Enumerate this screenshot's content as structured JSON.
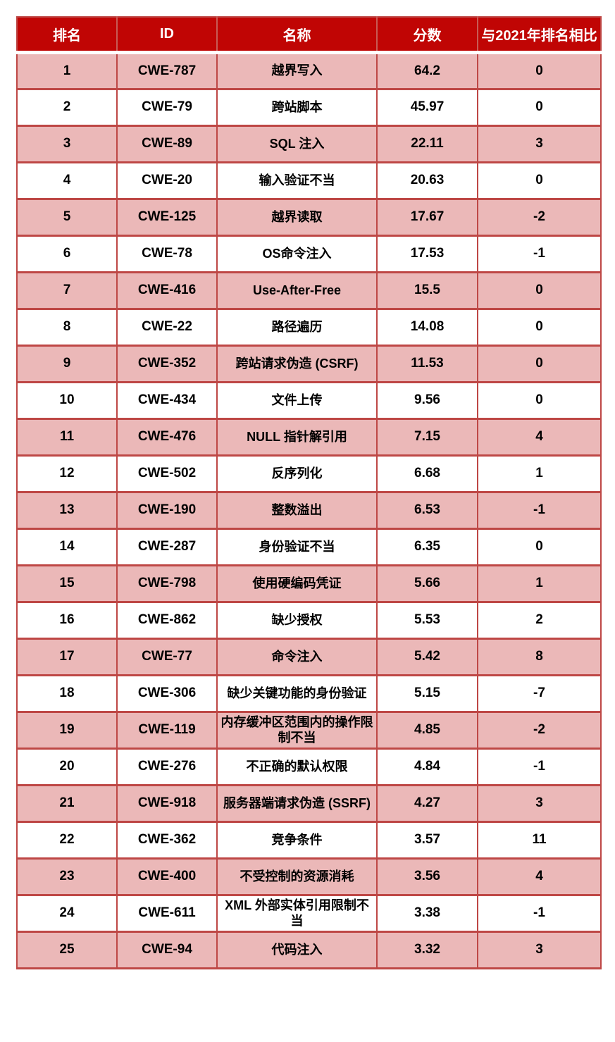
{
  "colors": {
    "header_bg": "#C00504",
    "header_text": "#FFFFFF",
    "header_divider": "#C75B55",
    "border": "#BE4745",
    "row_pink": "#EBB8B8",
    "row_white": "#FFFFFF"
  },
  "table": {
    "columns": [
      "排名",
      "ID",
      "名称",
      "分数",
      "与2021年排名相比"
    ],
    "rows": [
      {
        "rank": "1",
        "id": "CWE-787",
        "name": "越界写入",
        "score": "64.2",
        "change": "0"
      },
      {
        "rank": "2",
        "id": "CWE-79",
        "name": "跨站脚本",
        "score": "45.97",
        "change": "0"
      },
      {
        "rank": "3",
        "id": "CWE-89",
        "name": "SQL 注入",
        "score": "22.11",
        "change": "3"
      },
      {
        "rank": "4",
        "id": "CWE-20",
        "name": "输入验证不当",
        "score": "20.63",
        "change": "0"
      },
      {
        "rank": "5",
        "id": "CWE-125",
        "name": "越界读取",
        "score": "17.67",
        "change": "-2"
      },
      {
        "rank": "6",
        "id": "CWE-78",
        "name": "OS命令注入",
        "score": "17.53",
        "change": "-1"
      },
      {
        "rank": "7",
        "id": "CWE-416",
        "name": "Use-After-Free",
        "score": "15.5",
        "change": "0"
      },
      {
        "rank": "8",
        "id": "CWE-22",
        "name": "路径遍历",
        "score": "14.08",
        "change": "0"
      },
      {
        "rank": "9",
        "id": "CWE-352",
        "name": "跨站请求伪造 (CSRF)",
        "score": "11.53",
        "change": "0"
      },
      {
        "rank": "10",
        "id": "CWE-434",
        "name": "文件上传",
        "score": "9.56",
        "change": "0"
      },
      {
        "rank": "11",
        "id": "CWE-476",
        "name": "NULL 指针解引用",
        "score": "7.15",
        "change": "4"
      },
      {
        "rank": "12",
        "id": "CWE-502",
        "name": "反序列化",
        "score": "6.68",
        "change": "1"
      },
      {
        "rank": "13",
        "id": "CWE-190",
        "name": "整数溢出",
        "score": "6.53",
        "change": "-1"
      },
      {
        "rank": "14",
        "id": "CWE-287",
        "name": "身份验证不当",
        "score": "6.35",
        "change": "0"
      },
      {
        "rank": "15",
        "id": "CWE-798",
        "name": "使用硬编码凭证",
        "score": "5.66",
        "change": "1"
      },
      {
        "rank": "16",
        "id": "CWE-862",
        "name": "缺少授权",
        "score": "5.53",
        "change": "2"
      },
      {
        "rank": "17",
        "id": "CWE-77",
        "name": "命令注入",
        "score": "5.42",
        "change": "8"
      },
      {
        "rank": "18",
        "id": "CWE-306",
        "name": "缺少关键功能的身份验证",
        "score": "5.15",
        "change": "-7"
      },
      {
        "rank": "19",
        "id": "CWE-119",
        "name": "内存缓冲区范围内的操作限制不当",
        "score": "4.85",
        "change": "-2"
      },
      {
        "rank": "20",
        "id": "CWE-276",
        "name": "不正确的默认权限",
        "score": "4.84",
        "change": "-1"
      },
      {
        "rank": "21",
        "id": "CWE-918",
        "name": "服务器端请求伪造 (SSRF)",
        "score": "4.27",
        "change": "3"
      },
      {
        "rank": "22",
        "id": "CWE-362",
        "name": "竞争条件",
        "score": "3.57",
        "change": "11"
      },
      {
        "rank": "23",
        "id": "CWE-400",
        "name": "不受控制的资源消耗",
        "score": "3.56",
        "change": "4"
      },
      {
        "rank": "24",
        "id": "CWE-611",
        "name": "XML 外部实体引用限制不当",
        "score": "3.38",
        "change": "-1"
      },
      {
        "rank": "25",
        "id": "CWE-94",
        "name": "代码注入",
        "score": "3.32",
        "change": "3"
      }
    ]
  }
}
